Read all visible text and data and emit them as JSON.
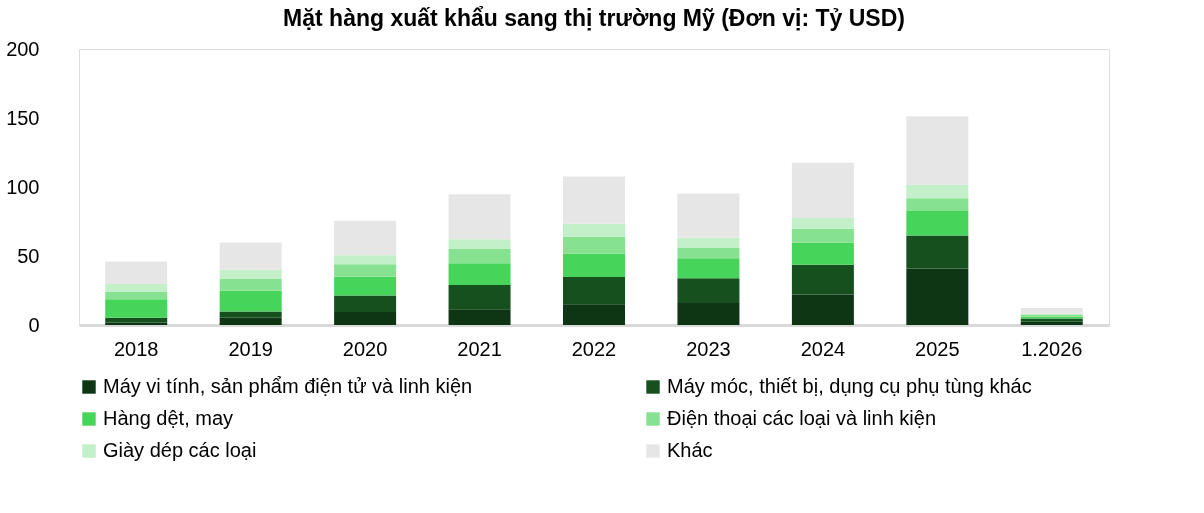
{
  "chart_data": {
    "type": "bar",
    "title": "Mặt hàng xuất khẩu sang thị trường Mỹ (Đơn vị: Tỷ USD)",
    "categories": [
      "2018",
      "2019",
      "2020",
      "2021",
      "2022",
      "2023",
      "2024",
      "2025",
      "1.2026"
    ],
    "stacked": true,
    "series": [
      {
        "name": "Máy vi tính, sản phẩm điện tử và linh kiện",
        "color": "#0e3514",
        "values": [
          1.9,
          5.2,
          9.5,
          11.4,
          15,
          16,
          22.1,
          41,
          2.4
        ]
      },
      {
        "name": "Máy móc, thiết bị, dụng cụ phụ tùng khác",
        "color": "#16501e",
        "values": [
          3.3,
          4.6,
          11.9,
          17.6,
          19.8,
          17.8,
          21.5,
          23.8,
          2.4
        ]
      },
      {
        "name": "Hàng dệt, may",
        "color": "#47d45a",
        "values": [
          13.4,
          15,
          13.6,
          15.8,
          17.1,
          14.5,
          16.2,
          17.8,
          1.2
        ]
      },
      {
        "name": "Điện thoại các loại và linh kiện",
        "color": "#86e290",
        "values": [
          5.4,
          8.5,
          9,
          10.2,
          12.1,
          7.9,
          10,
          9.3,
          1.6
        ]
      },
      {
        "name": "Giày dép các loại",
        "color": "#c3f0c8",
        "values": [
          5.8,
          6.7,
          6.5,
          7.1,
          9.3,
          7.1,
          7.8,
          9.5,
          0.3
        ]
      },
      {
        "name": "Khác",
        "color": "#e6e6e6",
        "values": [
          16.2,
          19.8,
          25,
          32.7,
          34.3,
          31.9,
          40,
          49.8,
          4.5
        ]
      }
    ],
    "ylim": [
      0,
      200
    ],
    "yticks": [
      0,
      50,
      100,
      150,
      200
    ],
    "grid": false,
    "legend": "bottom"
  }
}
